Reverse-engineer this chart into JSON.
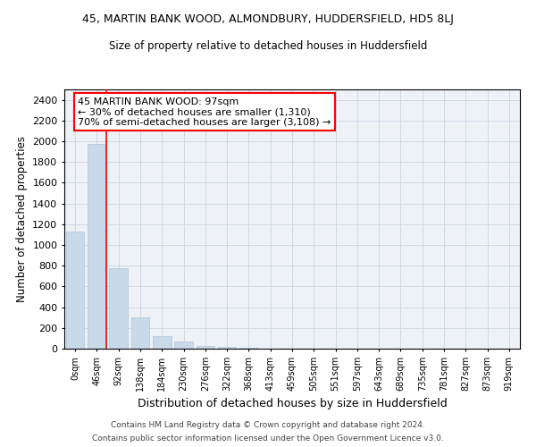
{
  "title": "45, MARTIN BANK WOOD, ALMONDBURY, HUDDERSFIELD, HD5 8LJ",
  "subtitle": "Size of property relative to detached houses in Huddersfield",
  "xlabel": "Distribution of detached houses by size in Huddersfield",
  "ylabel": "Number of detached properties",
  "bar_color": "#c8d9ea",
  "bar_edge_color": "#b0c4d8",
  "categories": [
    "0sqm",
    "46sqm",
    "92sqm",
    "138sqm",
    "184sqm",
    "230sqm",
    "276sqm",
    "322sqm",
    "368sqm",
    "413sqm",
    "459sqm",
    "505sqm",
    "551sqm",
    "597sqm",
    "643sqm",
    "689sqm",
    "735sqm",
    "781sqm",
    "827sqm",
    "873sqm",
    "919sqm"
  ],
  "values": [
    1130,
    1970,
    780,
    300,
    120,
    70,
    30,
    15,
    8,
    4,
    2,
    1,
    0,
    0,
    0,
    0,
    0,
    0,
    0,
    0,
    0
  ],
  "ylim": [
    0,
    2500
  ],
  "yticks": [
    0,
    200,
    400,
    600,
    800,
    1000,
    1200,
    1400,
    1600,
    1800,
    2000,
    2200,
    2400
  ],
  "property_label": "45 MARTIN BANK WOOD: 97sqm",
  "annotation_line1": "← 30% of detached houses are smaller (1,310)",
  "annotation_line2": "70% of semi-detached houses are larger (3,108) →",
  "marker_bar_index": 1,
  "footnote1": "Contains HM Land Registry data © Crown copyright and database right 2024.",
  "footnote2": "Contains public sector information licensed under the Open Government Licence v3.0.",
  "grid_color": "#d0d8e4",
  "background_color": "#eef2f7"
}
